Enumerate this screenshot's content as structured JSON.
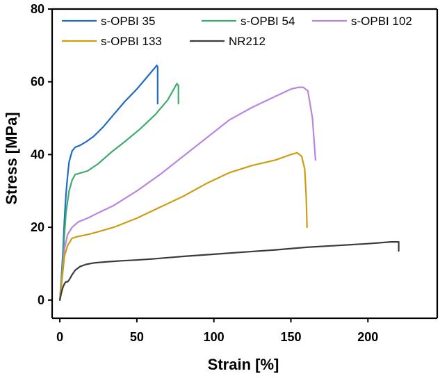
{
  "chart_data": {
    "type": "line",
    "title": "",
    "xlabel": "Strain [%]",
    "ylabel": "Stress [MPa]",
    "xlim": [
      -5,
      245
    ],
    "ylim": [
      -5,
      80
    ],
    "xticks": [
      0,
      50,
      100,
      150,
      200
    ],
    "yticks": [
      0,
      20,
      40,
      60,
      80
    ],
    "grid": false,
    "legend_position": "top",
    "series": [
      {
        "name": "s-OPBI 35",
        "color": "#1f6bc4",
        "x": [
          0,
          1,
          2,
          3,
          4,
          5,
          6,
          8,
          10,
          13,
          17,
          22,
          28,
          35,
          42,
          50,
          56,
          60,
          63,
          63.5,
          63.5
        ],
        "y": [
          0,
          6,
          13,
          22,
          29,
          34,
          38,
          41,
          42,
          42.5,
          43.5,
          45,
          47.5,
          51,
          54.5,
          58,
          61,
          63,
          64.5,
          64,
          54
        ]
      },
      {
        "name": "s-OPBI 54",
        "color": "#3cac6c",
        "x": [
          0,
          1,
          2,
          3,
          4,
          6,
          8,
          10,
          14,
          18,
          25,
          33,
          42,
          52,
          62,
          70,
          74,
          76,
          77,
          77
        ],
        "y": [
          0,
          5,
          11,
          18,
          24,
          30,
          33,
          34.5,
          35,
          35.5,
          37.5,
          40.5,
          43.5,
          47,
          51,
          55,
          58,
          59.5,
          59,
          54
        ]
      },
      {
        "name": "s-OPBI 102",
        "color": "#b985e0",
        "x": [
          0,
          1,
          2,
          3,
          5,
          8,
          12,
          18,
          25,
          35,
          50,
          65,
          80,
          95,
          110,
          125,
          140,
          150,
          155,
          158,
          161,
          164,
          166
        ],
        "y": [
          0,
          4,
          9,
          14,
          18,
          20,
          21.5,
          22.5,
          24,
          26,
          30,
          34.5,
          39.5,
          44.5,
          49.5,
          53,
          56,
          58,
          58.5,
          58.5,
          57.5,
          50,
          38.5
        ]
      },
      {
        "name": "s-OPBI 133",
        "color": "#cc9d12",
        "x": [
          0,
          1,
          2,
          3,
          5,
          8,
          12,
          18,
          25,
          35,
          50,
          65,
          80,
          95,
          110,
          125,
          140,
          150,
          154,
          157,
          159,
          160,
          160.5
        ],
        "y": [
          0,
          4,
          8,
          12,
          15,
          17,
          17.5,
          18,
          18.8,
          20,
          22.5,
          25.5,
          28.5,
          32,
          35,
          37,
          38.5,
          40,
          40.5,
          39.5,
          36,
          28,
          20
        ]
      },
      {
        "name": "NR212",
        "color": "#3a3a3a",
        "x": [
          0,
          1,
          2,
          3,
          4,
          5,
          6,
          8,
          10,
          13,
          17,
          22,
          30,
          40,
          50,
          60,
          80,
          100,
          120,
          140,
          160,
          180,
          200,
          215,
          220,
          220
        ],
        "y": [
          0,
          2,
          3.5,
          4.5,
          5,
          5,
          5.5,
          7,
          8.2,
          9.2,
          9.8,
          10.2,
          10.5,
          10.8,
          11,
          11.3,
          12,
          12.6,
          13.2,
          13.8,
          14.5,
          15,
          15.5,
          16,
          16,
          13.5
        ]
      }
    ]
  }
}
